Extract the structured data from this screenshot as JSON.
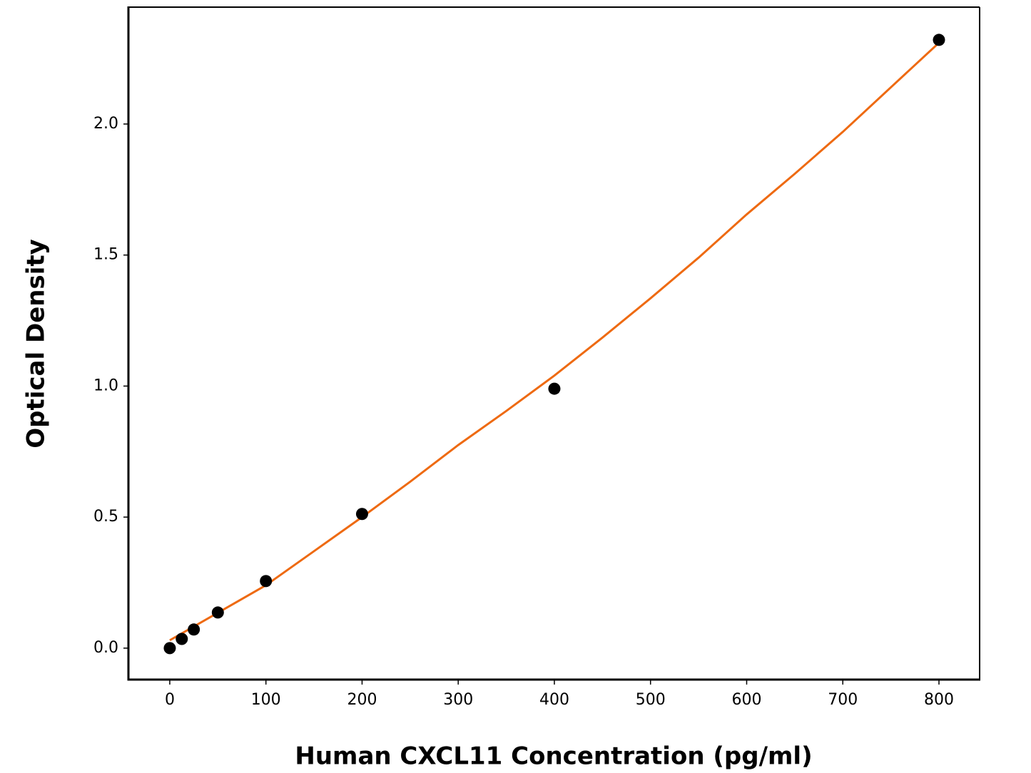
{
  "chart_data": {
    "type": "scatter",
    "xlabel": "Human CXCL11 Concentration (pg/ml)",
    "ylabel": "Optical Density",
    "xlim": [
      -43,
      842.3
    ],
    "ylim": [
      -0.12,
      2.446
    ],
    "xticks": [
      0,
      100,
      200,
      300,
      400,
      500,
      600,
      700,
      800
    ],
    "yticks": [
      {
        "value": 0,
        "label": "0.0"
      },
      0.5,
      {
        "value": 1,
        "label": "1.0"
      },
      1.5,
      {
        "value": 2,
        "label": "2.0"
      }
    ],
    "grid": false,
    "series": [
      {
        "kind": "scatter",
        "color": "#000000",
        "x": [
          0,
          12.5,
          25,
          50,
          100,
          200,
          400,
          800
        ],
        "values": [
          0.0,
          0.035,
          0.071,
          0.136,
          0.256,
          0.512,
          0.99,
          2.321
        ]
      },
      {
        "kind": "line",
        "color": "#ee6a12",
        "x": [
          0,
          50,
          100,
          150,
          200,
          250,
          300,
          350,
          400,
          450,
          500,
          550,
          600,
          650,
          700,
          750,
          800
        ],
        "values": [
          0.03,
          0.135,
          0.24,
          0.37,
          0.5,
          0.635,
          0.775,
          0.905,
          1.04,
          1.185,
          1.335,
          1.49,
          1.655,
          1.81,
          1.97,
          2.14,
          2.31
        ]
      }
    ]
  }
}
